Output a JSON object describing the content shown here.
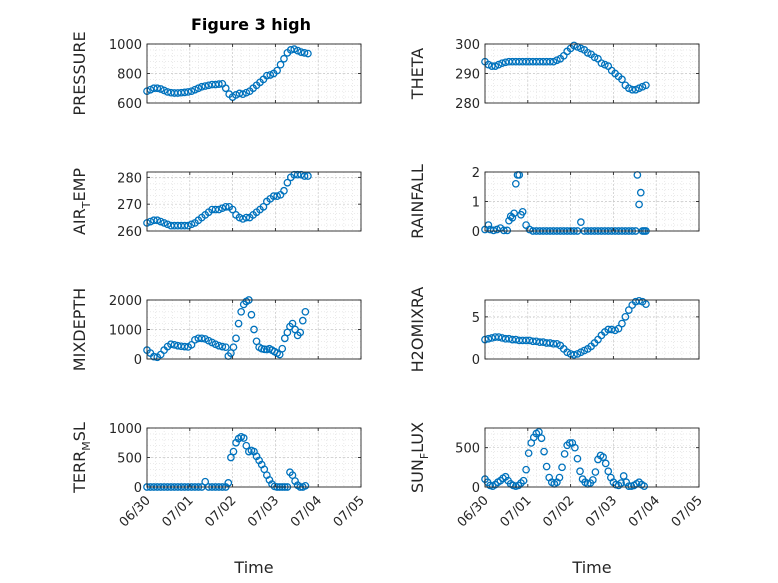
{
  "figure": {
    "title": "Figure 3 high",
    "marker_color": "#0072bd",
    "axis_color": "#262626",
    "grid_color": "#dddddd"
  },
  "chart_data": [
    {
      "type": "scatter",
      "title": "Figure 3 high",
      "ylabel": "PRESSURE",
      "ylabel_sub": "",
      "ylabel_tail": "",
      "xlim": [
        "06/30",
        "07/05"
      ],
      "ylim": [
        600,
        1000
      ],
      "yticks": [
        600,
        800,
        1000
      ],
      "xticks": [
        "06/30",
        "07/01",
        "07/02",
        "07/03",
        "07/04",
        "07/05"
      ],
      "show_xtick_labels": false,
      "xlabel": "",
      "grid": true,
      "x": [
        0.0,
        0.08,
        0.16,
        0.24,
        0.32,
        0.4,
        0.48,
        0.56,
        0.64,
        0.72,
        0.8,
        0.88,
        0.96,
        1.04,
        1.12,
        1.2,
        1.28,
        1.36,
        1.44,
        1.52,
        1.6,
        1.68,
        1.76,
        1.84,
        1.92,
        2.0,
        2.08,
        2.16,
        2.24,
        2.32,
        2.4,
        2.48,
        2.56,
        2.64,
        2.72,
        2.8,
        2.88,
        2.96,
        3.04,
        3.12,
        3.2,
        3.28,
        3.36,
        3.44,
        3.52,
        3.6,
        3.68,
        3.76
      ],
      "y": [
        680,
        690,
        700,
        700,
        695,
        685,
        675,
        670,
        668,
        668,
        670,
        672,
        675,
        680,
        690,
        700,
        710,
        715,
        720,
        725,
        725,
        728,
        730,
        700,
        660,
        640,
        655,
        665,
        660,
        670,
        680,
        700,
        720,
        740,
        760,
        785,
        790,
        800,
        820,
        860,
        900,
        940,
        960,
        965,
        955,
        945,
        940,
        935
      ]
    },
    {
      "type": "scatter",
      "title": "",
      "ylabel": "THETA",
      "ylabel_sub": "",
      "ylabel_tail": "",
      "xlim": [
        "06/30",
        "07/05"
      ],
      "ylim": [
        280,
        300
      ],
      "yticks": [
        280,
        290,
        300
      ],
      "xticks": [
        "06/30",
        "07/01",
        "07/02",
        "07/03",
        "07/04",
        "07/05"
      ],
      "show_xtick_labels": false,
      "xlabel": "",
      "grid": true,
      "x": [
        0.0,
        0.08,
        0.16,
        0.24,
        0.32,
        0.4,
        0.48,
        0.56,
        0.64,
        0.72,
        0.8,
        0.88,
        0.96,
        1.04,
        1.12,
        1.2,
        1.28,
        1.36,
        1.44,
        1.52,
        1.6,
        1.68,
        1.76,
        1.84,
        1.92,
        2.0,
        2.08,
        2.16,
        2.24,
        2.32,
        2.4,
        2.48,
        2.56,
        2.64,
        2.72,
        2.8,
        2.88,
        2.96,
        3.04,
        3.12,
        3.2,
        3.28,
        3.36,
        3.44,
        3.52,
        3.6,
        3.68,
        3.76
      ],
      "y": [
        294,
        293,
        292.5,
        292.5,
        293,
        293.5,
        293.8,
        294,
        294,
        294,
        294,
        294,
        294,
        294,
        294,
        294,
        294,
        294,
        294,
        294,
        294,
        294.5,
        295,
        296,
        297.5,
        298.5,
        299.5,
        299,
        298.5,
        298,
        297,
        296.5,
        295.5,
        295,
        293.5,
        293,
        292.5,
        291,
        290,
        289,
        288,
        286,
        285,
        284.5,
        284.5,
        285,
        285.5,
        286
      ]
    },
    {
      "type": "scatter",
      "title": "",
      "ylabel": "AIR",
      "ylabel_sub": "T",
      "ylabel_tail": "EMP",
      "xlim": [
        "06/30",
        "07/05"
      ],
      "ylim": [
        260,
        282
      ],
      "yticks": [
        260,
        270,
        280
      ],
      "xticks": [
        "06/30",
        "07/01",
        "07/02",
        "07/03",
        "07/04",
        "07/05"
      ],
      "show_xtick_labels": false,
      "xlabel": "",
      "grid": true,
      "x": [
        0.0,
        0.08,
        0.16,
        0.24,
        0.32,
        0.4,
        0.48,
        0.56,
        0.64,
        0.72,
        0.8,
        0.88,
        0.96,
        1.04,
        1.12,
        1.2,
        1.28,
        1.36,
        1.44,
        1.52,
        1.6,
        1.68,
        1.76,
        1.84,
        1.92,
        2.0,
        2.08,
        2.16,
        2.24,
        2.32,
        2.4,
        2.48,
        2.56,
        2.64,
        2.72,
        2.8,
        2.88,
        2.96,
        3.04,
        3.12,
        3.2,
        3.28,
        3.36,
        3.44,
        3.52,
        3.6,
        3.68,
        3.76
      ],
      "y": [
        263,
        263.5,
        264,
        264,
        263.5,
        263,
        262.5,
        262,
        262,
        262,
        262,
        262,
        262,
        262.5,
        263,
        264,
        265,
        266,
        267,
        268,
        268,
        268,
        268.5,
        269,
        269,
        268,
        266,
        265,
        264.5,
        265,
        265,
        266,
        267,
        268,
        269,
        271,
        272,
        273,
        273,
        273.5,
        275,
        278,
        280,
        281,
        281,
        281,
        280.5,
        280.5
      ]
    },
    {
      "type": "scatter",
      "title": "",
      "ylabel": "RAINFALL",
      "ylabel_sub": "",
      "ylabel_tail": "",
      "xlim": [
        "06/30",
        "07/05"
      ],
      "ylim": [
        0,
        2
      ],
      "yticks": [
        0,
        1,
        2
      ],
      "xticks": [
        "06/30",
        "07/01",
        "07/02",
        "07/03",
        "07/04",
        "07/05"
      ],
      "show_xtick_labels": false,
      "xlabel": "",
      "grid": true,
      "x": [
        0.0,
        0.08,
        0.12,
        0.2,
        0.28,
        0.36,
        0.44,
        0.52,
        0.56,
        0.6,
        0.64,
        0.68,
        0.72,
        0.76,
        0.8,
        0.84,
        0.88,
        0.96,
        1.04,
        1.12,
        1.2,
        1.28,
        1.36,
        1.44,
        1.52,
        1.6,
        1.68,
        1.76,
        1.84,
        1.92,
        2.0,
        2.08,
        2.16,
        2.24,
        2.32,
        2.4,
        2.48,
        2.56,
        2.64,
        2.72,
        2.8,
        2.88,
        2.96,
        3.04,
        3.12,
        3.2,
        3.28,
        3.36,
        3.44,
        3.52,
        3.56,
        3.6,
        3.64,
        3.68,
        3.72,
        3.76
      ],
      "y": [
        0.05,
        0.2,
        0.05,
        0.02,
        0.05,
        0.1,
        0.02,
        0.02,
        0.35,
        0.5,
        0.45,
        0.6,
        1.6,
        1.9,
        1.9,
        0.55,
        0.65,
        0.2,
        0.05,
        0.0,
        0.0,
        0.0,
        0.0,
        0.0,
        0.0,
        0.0,
        0.0,
        0.0,
        0.0,
        0.0,
        0.0,
        0.0,
        0.0,
        0.3,
        0.0,
        0.0,
        0.0,
        0.0,
        0.0,
        0.0,
        0.0,
        0.0,
        0.0,
        0.0,
        0.0,
        0.0,
        0.0,
        0.0,
        0.0,
        0.0,
        1.9,
        0.9,
        1.3,
        0.0,
        0.0,
        0.0
      ]
    },
    {
      "type": "scatter",
      "title": "",
      "ylabel": "MIXDEPTH",
      "ylabel_sub": "",
      "ylabel_tail": "",
      "xlim": [
        "06/30",
        "07/05"
      ],
      "ylim": [
        0,
        2000
      ],
      "yticks": [
        0,
        1000,
        2000
      ],
      "xticks": [
        "06/30",
        "07/01",
        "07/02",
        "07/03",
        "07/04",
        "07/05"
      ],
      "show_xtick_labels": false,
      "xlabel": "",
      "grid": true,
      "x": [
        0.0,
        0.08,
        0.16,
        0.24,
        0.32,
        0.4,
        0.48,
        0.56,
        0.64,
        0.72,
        0.8,
        0.88,
        0.96,
        1.04,
        1.12,
        1.2,
        1.28,
        1.36,
        1.44,
        1.52,
        1.6,
        1.68,
        1.76,
        1.84,
        1.9,
        1.96,
        2.02,
        2.08,
        2.14,
        2.2,
        2.26,
        2.32,
        2.38,
        2.44,
        2.5,
        2.56,
        2.62,
        2.68,
        2.74,
        2.8,
        2.86,
        2.92,
        2.98,
        3.04,
        3.1,
        3.16,
        3.22,
        3.28,
        3.34,
        3.4,
        3.46,
        3.52,
        3.58,
        3.64,
        3.7
      ],
      "y": [
        300,
        200,
        80,
        60,
        150,
        300,
        420,
        500,
        480,
        450,
        430,
        420,
        410,
        480,
        650,
        700,
        700,
        680,
        620,
        560,
        500,
        450,
        420,
        400,
        100,
        200,
        400,
        700,
        1200,
        1600,
        1850,
        1950,
        2000,
        1500,
        1000,
        600,
        400,
        350,
        330,
        320,
        350,
        300,
        250,
        200,
        150,
        350,
        700,
        900,
        1100,
        1200,
        1000,
        800,
        900,
        1300,
        1600
      ]
    },
    {
      "type": "scatter",
      "title": "",
      "ylabel": "H2OMIXRA",
      "ylabel_sub": "",
      "ylabel_tail": "",
      "xlim": [
        "06/30",
        "07/05"
      ],
      "ylim": [
        0,
        7
      ],
      "yticks": [
        0,
        5
      ],
      "xticks": [
        "06/30",
        "07/01",
        "07/02",
        "07/03",
        "07/04",
        "07/05"
      ],
      "show_xtick_labels": false,
      "xlabel": "",
      "grid": true,
      "x": [
        0.0,
        0.08,
        0.16,
        0.24,
        0.32,
        0.4,
        0.48,
        0.56,
        0.64,
        0.72,
        0.8,
        0.88,
        0.96,
        1.04,
        1.12,
        1.2,
        1.28,
        1.36,
        1.44,
        1.52,
        1.6,
        1.68,
        1.76,
        1.84,
        1.92,
        2.0,
        2.08,
        2.16,
        2.24,
        2.32,
        2.4,
        2.48,
        2.56,
        2.64,
        2.72,
        2.8,
        2.88,
        2.96,
        3.04,
        3.12,
        3.2,
        3.28,
        3.36,
        3.44,
        3.52,
        3.6,
        3.68,
        3.76
      ],
      "y": [
        2.3,
        2.4,
        2.5,
        2.6,
        2.6,
        2.5,
        2.4,
        2.4,
        2.3,
        2.3,
        2.2,
        2.2,
        2.2,
        2.2,
        2.1,
        2.1,
        2.0,
        2.0,
        1.9,
        1.9,
        1.8,
        1.8,
        1.6,
        1.2,
        0.8,
        0.6,
        0.5,
        0.6,
        0.8,
        1.0,
        1.2,
        1.5,
        1.9,
        2.3,
        2.8,
        3.2,
        3.5,
        3.5,
        3.4,
        3.6,
        4.2,
        5.0,
        5.8,
        6.4,
        6.8,
        6.9,
        6.8,
        6.5
      ]
    },
    {
      "type": "scatter",
      "title": "",
      "ylabel": "TERR",
      "ylabel_sub": "M",
      "ylabel_tail": "SL",
      "xlim": [
        "06/30",
        "07/05"
      ],
      "ylim": [
        0,
        1000
      ],
      "yticks": [
        0,
        500,
        1000
      ],
      "xticks": [
        "06/30",
        "07/01",
        "07/02",
        "07/03",
        "07/04",
        "07/05"
      ],
      "show_xtick_labels": true,
      "xlabel": "Time",
      "grid": true,
      "x": [
        0.0,
        0.08,
        0.16,
        0.24,
        0.32,
        0.4,
        0.48,
        0.56,
        0.64,
        0.72,
        0.8,
        0.88,
        0.96,
        1.04,
        1.12,
        1.2,
        1.28,
        1.36,
        1.44,
        1.52,
        1.6,
        1.68,
        1.76,
        1.84,
        1.9,
        1.96,
        2.02,
        2.08,
        2.14,
        2.2,
        2.26,
        2.32,
        2.38,
        2.44,
        2.5,
        2.56,
        2.62,
        2.68,
        2.74,
        2.8,
        2.86,
        2.92,
        2.98,
        3.04,
        3.1,
        3.16,
        3.22,
        3.28,
        3.34,
        3.4,
        3.46,
        3.52,
        3.58,
        3.64,
        3.7
      ],
      "y": [
        0,
        0,
        0,
        0,
        0,
        0,
        0,
        0,
        0,
        0,
        0,
        0,
        0,
        0,
        0,
        0,
        0,
        90,
        0,
        0,
        0,
        0,
        0,
        0,
        70,
        500,
        600,
        750,
        820,
        850,
        830,
        700,
        600,
        620,
        600,
        520,
        450,
        380,
        300,
        200,
        120,
        50,
        10,
        0,
        0,
        0,
        0,
        0,
        250,
        200,
        100,
        30,
        0,
        0,
        20
      ]
    },
    {
      "type": "scatter",
      "title": "",
      "ylabel": "SUN",
      "ylabel_sub": "F",
      "ylabel_tail": "LUX",
      "xlim": [
        "06/30",
        "07/05"
      ],
      "ylim": [
        0,
        750
      ],
      "yticks": [
        0,
        500
      ],
      "xticks": [
        "06/30",
        "07/01",
        "07/02",
        "07/03",
        "07/04",
        "07/05"
      ],
      "show_xtick_labels": true,
      "xlabel": "Time",
      "grid": true,
      "x": [
        0.0,
        0.06,
        0.12,
        0.18,
        0.24,
        0.3,
        0.36,
        0.42,
        0.48,
        0.54,
        0.6,
        0.66,
        0.72,
        0.78,
        0.84,
        0.9,
        0.96,
        1.02,
        1.08,
        1.14,
        1.2,
        1.26,
        1.32,
        1.38,
        1.44,
        1.5,
        1.56,
        1.62,
        1.68,
        1.74,
        1.8,
        1.86,
        1.92,
        1.98,
        2.04,
        2.1,
        2.16,
        2.22,
        2.28,
        2.34,
        2.4,
        2.46,
        2.52,
        2.58,
        2.64,
        2.7,
        2.76,
        2.82,
        2.88,
        2.94,
        3.0,
        3.06,
        3.12,
        3.18,
        3.24,
        3.3,
        3.36,
        3.42,
        3.48,
        3.54,
        3.6,
        3.66,
        3.72
      ],
      "y": [
        100,
        60,
        20,
        10,
        30,
        60,
        80,
        110,
        130,
        80,
        40,
        20,
        10,
        20,
        50,
        80,
        220,
        430,
        560,
        630,
        680,
        700,
        620,
        450,
        260,
        120,
        60,
        40,
        60,
        120,
        250,
        420,
        530,
        560,
        560,
        500,
        360,
        200,
        100,
        60,
        40,
        50,
        90,
        190,
        350,
        400,
        380,
        300,
        200,
        120,
        60,
        30,
        20,
        50,
        140,
        60,
        10,
        10,
        20,
        40,
        60,
        30,
        10
      ]
    }
  ]
}
